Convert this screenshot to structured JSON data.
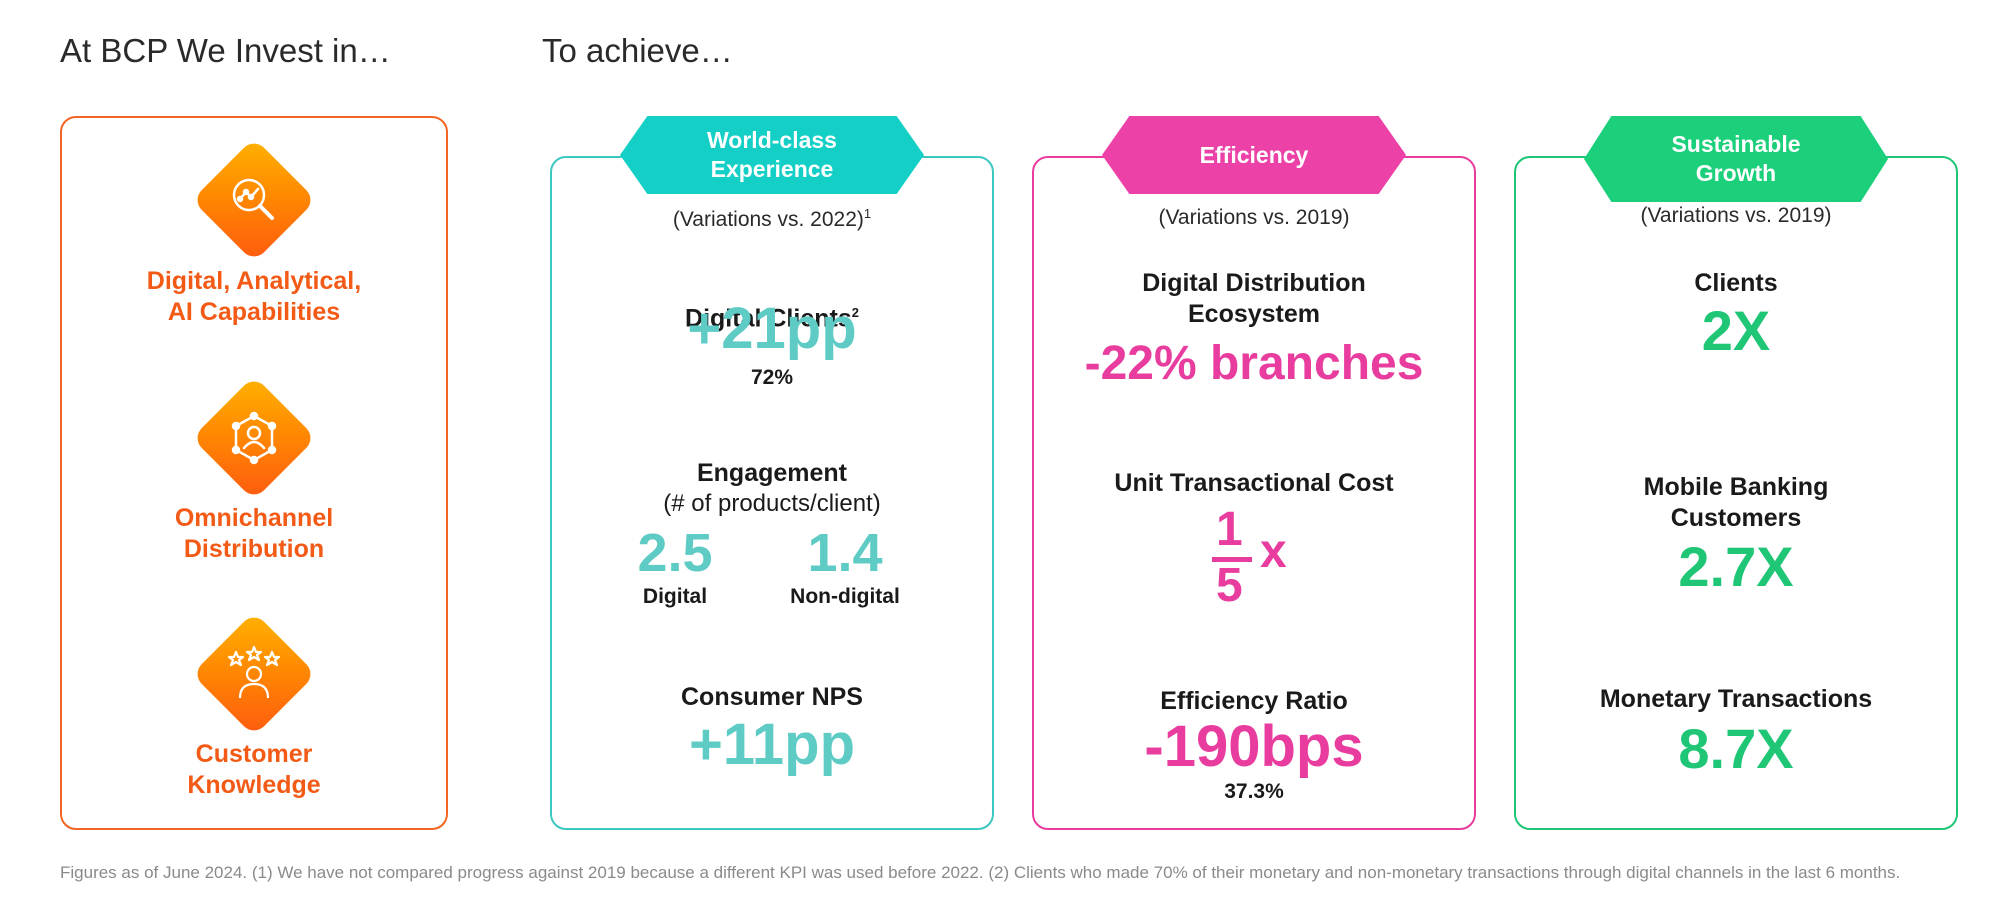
{
  "headings": {
    "invest": "At BCP We Invest in…",
    "achieve": "To achieve…"
  },
  "invest_items": [
    {
      "label": "Digital, Analytical,\nAI Capabilities",
      "icon": "analytics-search-icon"
    },
    {
      "label": "Omnichannel\nDistribution",
      "icon": "network-user-icon"
    },
    {
      "label": "Customer\nKnowledge",
      "icon": "customer-stars-icon"
    }
  ],
  "experience": {
    "header": "World-class\nExperience",
    "variation": "(Variations vs. 2022)",
    "variation_sup": "1",
    "digital_clients": {
      "label": "Digital Clients",
      "sup": "2",
      "value": "+21pp",
      "sub": "72%"
    },
    "engagement": {
      "label": "Engagement",
      "sublabel": "(# of products/client)",
      "digital_value": "2.5",
      "digital_label": "Digital",
      "nondigital_value": "1.4",
      "nondigital_label": "Non-digital"
    },
    "nps": {
      "label": "Consumer NPS",
      "value": "+11pp"
    }
  },
  "efficiency": {
    "header": "Efficiency",
    "variation": "(Variations vs. 2019)",
    "distribution": {
      "label": "Digital Distribution\nEcosystem",
      "value": "-22% branches"
    },
    "unit_cost": {
      "label": "Unit Transactional Cost",
      "numerator": "1",
      "denominator": "5",
      "suffix": "x"
    },
    "ratio": {
      "label": "Efficiency Ratio",
      "value": "-190bps",
      "sub": "37.3%"
    }
  },
  "growth": {
    "header": "Sustainable\nGrowth",
    "variation": "(Variations vs. 2019)",
    "clients": {
      "label": "Clients",
      "value": "2X"
    },
    "mobile": {
      "label": "Mobile Banking\nCustomers",
      "value": "2.7X"
    },
    "transactions": {
      "label": "Monetary Transactions",
      "value": "8.7X"
    }
  },
  "footnote": "Figures as of June 2024. (1) We have not compared progress against 2019 because a different KPI was used before 2022. (2) Clients who made 70% of their monetary and non-monetary transactions through digital channels in the last 6 months.",
  "colors": {
    "orange": "#f26522",
    "teal": "#3cc7c1",
    "pink": "#e83d9e",
    "green": "#1ec675"
  }
}
